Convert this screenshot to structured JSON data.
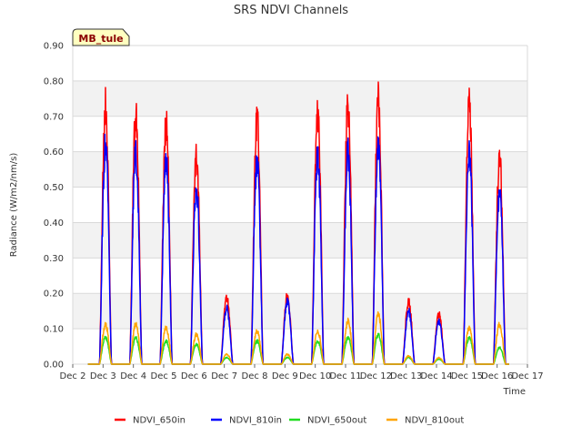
{
  "chart_data": {
    "type": "line",
    "title": "SRS NDVI Channels",
    "xlabel": "Time",
    "ylabel": "Radiance (W/m2/nm/s)",
    "ylim": [
      0,
      0.9
    ],
    "xlim": [
      2,
      17
    ],
    "yticks": [
      0.0,
      0.1,
      0.2,
      0.3,
      0.4,
      0.5,
      0.6,
      0.7,
      0.8,
      0.9
    ],
    "ytick_labels": [
      "0.00",
      "0.10",
      "0.20",
      "0.30",
      "0.40",
      "0.50",
      "0.60",
      "0.70",
      "0.80",
      "0.90"
    ],
    "xticks": [
      2,
      3,
      4,
      5,
      6,
      7,
      8,
      9,
      10,
      11,
      12,
      13,
      14,
      15,
      16,
      17
    ],
    "xtick_labels": [
      "Dec 2",
      "Dec 3",
      "Dec 4",
      "Dec 5",
      "Dec 6",
      "Dec 7",
      "Dec 8",
      "Dec 9",
      "Dec 10",
      "Dec 11",
      "Dec 12",
      "Dec 13",
      "Dec 14",
      "Dec 15",
      "Dec 16",
      "Dec 17"
    ],
    "badge": "MB_tule",
    "legend_position": "bottom-center",
    "days": [
      3,
      4,
      5,
      6,
      7,
      8,
      9,
      10,
      11,
      12,
      13,
      14,
      15,
      16
    ],
    "series": [
      {
        "name": "NDVI_650in",
        "color": "#ff0000",
        "peaks": [
          0.79,
          0.76,
          0.73,
          0.63,
          0.2,
          0.74,
          0.21,
          0.76,
          0.78,
          0.8,
          0.19,
          0.15,
          0.78,
          0.62
        ]
      },
      {
        "name": "NDVI_810in",
        "color": "#0000ff",
        "peaks": [
          0.66,
          0.64,
          0.61,
          0.53,
          0.17,
          0.61,
          0.19,
          0.63,
          0.64,
          0.66,
          0.16,
          0.13,
          0.64,
          0.52
        ]
      },
      {
        "name": "NDVI_650out",
        "color": "#22dd22",
        "peaks": [
          0.08,
          0.08,
          0.07,
          0.06,
          0.02,
          0.07,
          0.02,
          0.07,
          0.08,
          0.09,
          0.02,
          0.015,
          0.08,
          0.05
        ]
      },
      {
        "name": "NDVI_810out",
        "color": "#ffa500",
        "peaks": [
          0.12,
          0.12,
          0.11,
          0.09,
          0.03,
          0.1,
          0.03,
          0.1,
          0.13,
          0.15,
          0.025,
          0.02,
          0.11,
          0.12
        ]
      }
    ]
  }
}
